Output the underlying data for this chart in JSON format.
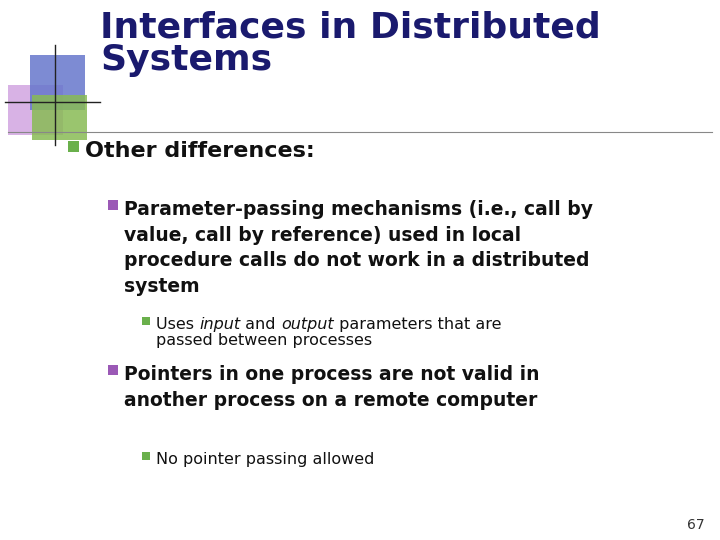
{
  "title_line1": "Interfaces in Distributed",
  "title_line2": "Systems",
  "title_color": "#1a1a6e",
  "title_fontsize": 26,
  "background_color": "#ffffff",
  "bullet_l0_color": "#6ab04c",
  "bullet_l1_color": "#9b59b6",
  "bullet_l2_color": "#6ab04c",
  "text_color": "#111111",
  "separator_color": "#aaaaaa",
  "page_number": "67",
  "decoration_blue": "#6677cc",
  "decoration_purple": "#cc99dd",
  "decoration_green": "#88bb55"
}
